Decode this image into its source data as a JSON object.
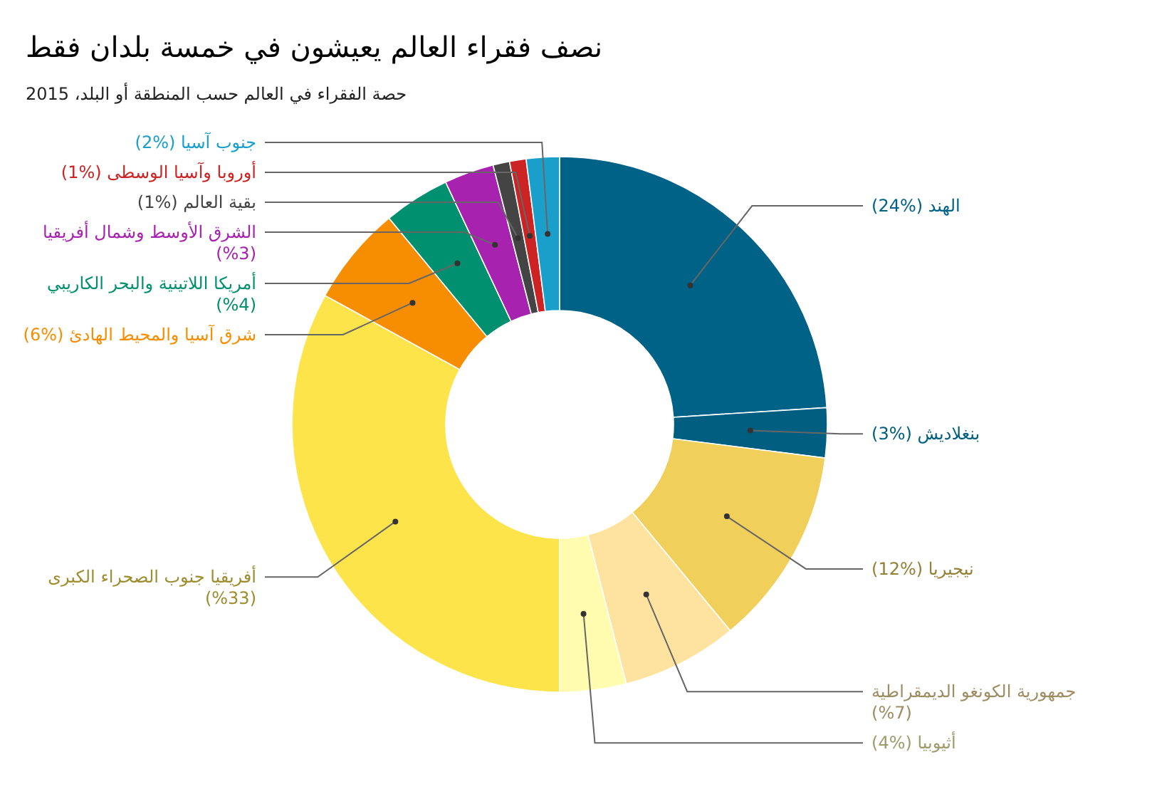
{
  "chart_data": {
    "type": "donut",
    "title": "نصف فقراء العالم يعيشون في خمسة بلدان فقط",
    "subtitle": "حصة الفقراء في العالم حسب المنطقة أو البلد، 2015",
    "categories": [
      "الهند (%24)",
      "بنغلاديش (%3)",
      "نيجيريا (%12)",
      "جمهورية الكونغو الديمقراطية (%7)",
      "أثيوبيا (%4)",
      "أفريقيا جنوب الصحراء الكبرى (%33)",
      "شرق آسيا والمحيط الهادئ (%6)",
      "أمريكا اللاتينية والبحر الكاريبي (%4)",
      "الشرق الأوسط وشمال أفريقيا (%3)",
      "بقية العالم (%1)",
      "أوروبا وآسيا الوسطى (%1)",
      "جنوب آسيا (%2)"
    ],
    "values": [
      24,
      3,
      12,
      7,
      4,
      33,
      6,
      4,
      3,
      1,
      1,
      2
    ],
    "colors": [
      "#006286",
      "#005f80",
      "#f0cf5a",
      "#fde39f",
      "#fffcb0",
      "#fde44b",
      "#f78d00",
      "#00906f",
      "#a822b0",
      "#444444",
      "#cc2424",
      "#1a9fcb"
    ]
  }
}
